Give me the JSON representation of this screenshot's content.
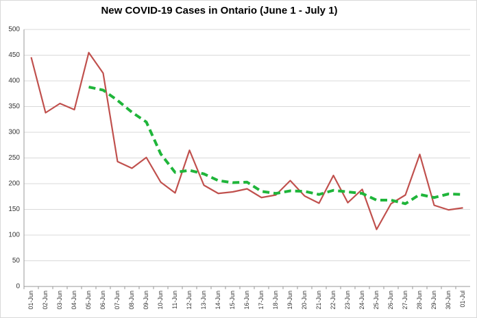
{
  "chart_data": {
    "type": "line",
    "title": "New COVID-19 Cases in Ontario (June 1 - July 1)",
    "categories": [
      "01-Jun",
      "02-Jun",
      "03-Jun",
      "04-Jun",
      "05-Jun",
      "06-Jun",
      "07-Jun",
      "08-Jun",
      "09-Jun",
      "10-Jun",
      "11-Jun",
      "12-Jun",
      "13-Jun",
      "14-Jun",
      "15-Jun",
      "16-Jun",
      "17-Jun",
      "18-Jun",
      "19-Jun",
      "20-Jun",
      "21-Jun",
      "22-Jun",
      "23-Jun",
      "24-Jun",
      "25-Jun",
      "26-Jun",
      "27-Jun",
      "28-Jun",
      "29-Jun",
      "30-Jun",
      "01-Jul"
    ],
    "series": [
      {
        "color": "#c0504d",
        "dashed": false,
        "values": [
          446,
          338,
          356,
          344,
          455,
          415,
          243,
          230,
          251,
          203,
          182,
          265,
          197,
          181,
          184,
          190,
          173,
          178,
          206,
          176,
          162,
          216,
          163,
          189,
          111,
          161,
          178,
          257,
          158,
          149,
          153
        ]
      },
      {
        "color": "#1fb53a",
        "dashed": true,
        "values": [
          null,
          null,
          null,
          null,
          388,
          382,
          362,
          339,
          320,
          258,
          222,
          226,
          219,
          206,
          202,
          203,
          185,
          181,
          186,
          185,
          179,
          187,
          184,
          181,
          168,
          168,
          161,
          179,
          173,
          180,
          179
        ]
      }
    ],
    "ylim": [
      0,
      500
    ],
    "yticks": [
      0,
      50,
      100,
      150,
      200,
      250,
      300,
      350,
      400,
      450,
      500
    ],
    "grid": true
  }
}
